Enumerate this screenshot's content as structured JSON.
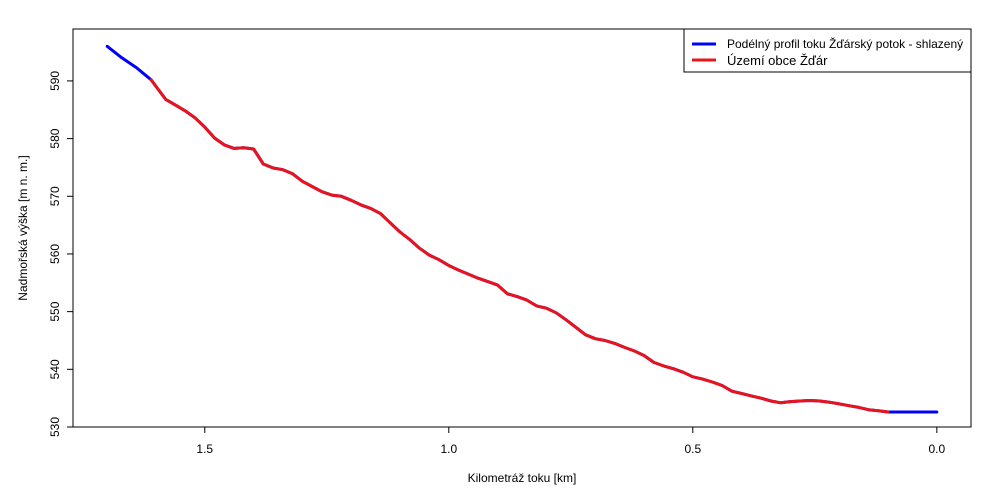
{
  "chart_data": {
    "type": "line",
    "title": "",
    "xlabel": "Kilometráž toku [km]",
    "ylabel": "Nadmořská výška [m n. m.]",
    "x_reversed": true,
    "xlim": [
      1.77,
      -0.07
    ],
    "ylim": [
      530,
      599
    ],
    "x_ticks": [
      1.5,
      1.0,
      0.5,
      0.0
    ],
    "x_tick_labels": [
      "1.5",
      "1.0",
      "0.5",
      "0.0"
    ],
    "y_ticks": [
      530,
      540,
      550,
      560,
      570,
      580,
      590
    ],
    "y_tick_labels": [
      "530",
      "540",
      "550",
      "560",
      "570",
      "580",
      "590"
    ],
    "grid": false,
    "legend_position": "top-right",
    "legend": [
      {
        "label": "Podélný profil toku Žďárský potok - shlazený",
        "color": "#0000ff"
      },
      {
        "label": "Území obce Žďár",
        "color": "#e8141b"
      }
    ],
    "series": [
      {
        "name": "Podélný profil toku Žďárský potok - shlazený",
        "color": "#0000ff",
        "x": [
          1.7,
          1.67,
          1.64,
          1.61,
          1.595,
          1.58,
          1.56,
          1.54,
          1.52,
          1.5,
          1.48,
          1.46,
          1.44,
          1.42,
          1.4,
          1.38,
          1.36,
          1.34,
          1.32,
          1.3,
          1.28,
          1.26,
          1.24,
          1.22,
          1.2,
          1.18,
          1.16,
          1.14,
          1.12,
          1.1,
          1.08,
          1.06,
          1.04,
          1.02,
          1.0,
          0.98,
          0.96,
          0.94,
          0.92,
          0.9,
          0.88,
          0.86,
          0.84,
          0.82,
          0.8,
          0.78,
          0.76,
          0.74,
          0.72,
          0.7,
          0.68,
          0.66,
          0.64,
          0.62,
          0.6,
          0.58,
          0.56,
          0.54,
          0.52,
          0.5,
          0.48,
          0.46,
          0.44,
          0.42,
          0.4,
          0.38,
          0.36,
          0.34,
          0.32,
          0.3,
          0.28,
          0.26,
          0.24,
          0.22,
          0.2,
          0.18,
          0.16,
          0.14,
          0.12,
          0.1,
          0.08,
          0.06,
          0.04,
          0.02,
          0.0
        ],
        "y": [
          596.0,
          594.0,
          592.3,
          590.2,
          588.5,
          586.8,
          585.8,
          584.8,
          583.6,
          582.0,
          580.1,
          578.9,
          578.3,
          578.4,
          578.2,
          575.6,
          574.9,
          574.6,
          573.9,
          572.6,
          571.7,
          570.8,
          570.2,
          570.0,
          569.3,
          568.5,
          567.9,
          567.0,
          565.4,
          563.8,
          562.5,
          561.0,
          559.8,
          559.0,
          558.0,
          557.2,
          556.5,
          555.8,
          555.2,
          554.6,
          553.1,
          552.6,
          552.0,
          551.0,
          550.6,
          549.8,
          548.6,
          547.3,
          546.0,
          545.3,
          545.0,
          544.5,
          543.8,
          543.2,
          542.4,
          541.2,
          540.6,
          540.1,
          539.5,
          538.7,
          538.3,
          537.8,
          537.2,
          536.2,
          535.8,
          535.4,
          535.0,
          534.5,
          534.2,
          534.4,
          534.5,
          534.6,
          534.5,
          534.3,
          534.0,
          533.7,
          533.4,
          533.0,
          532.8,
          532.6,
          532.6,
          532.6,
          532.6,
          532.6,
          532.6
        ]
      },
      {
        "name": "Území obce Žďár",
        "color": "#e8141b",
        "x": [
          1.61,
          1.595,
          1.58,
          1.56,
          1.54,
          1.52,
          1.5,
          1.48,
          1.46,
          1.44,
          1.42,
          1.4,
          1.38,
          1.36,
          1.34,
          1.32,
          1.3,
          1.28,
          1.26,
          1.24,
          1.22,
          1.2,
          1.18,
          1.16,
          1.14,
          1.12,
          1.1,
          1.08,
          1.06,
          1.04,
          1.02,
          1.0,
          0.98,
          0.96,
          0.94,
          0.92,
          0.9,
          0.88,
          0.86,
          0.84,
          0.82,
          0.8,
          0.78,
          0.76,
          0.74,
          0.72,
          0.7,
          0.68,
          0.66,
          0.64,
          0.62,
          0.6,
          0.58,
          0.56,
          0.54,
          0.52,
          0.5,
          0.48,
          0.46,
          0.44,
          0.42,
          0.4,
          0.38,
          0.36,
          0.34,
          0.32,
          0.3,
          0.28,
          0.26,
          0.24,
          0.22,
          0.2,
          0.18,
          0.16,
          0.14,
          0.12,
          0.1
        ],
        "y": [
          590.2,
          588.5,
          586.8,
          585.8,
          584.8,
          583.6,
          582.0,
          580.1,
          578.9,
          578.3,
          578.4,
          578.2,
          575.6,
          574.9,
          574.6,
          573.9,
          572.6,
          571.7,
          570.8,
          570.2,
          570.0,
          569.3,
          568.5,
          567.9,
          567.0,
          565.4,
          563.8,
          562.5,
          561.0,
          559.8,
          559.0,
          558.0,
          557.2,
          556.5,
          555.8,
          555.2,
          554.6,
          553.1,
          552.6,
          552.0,
          551.0,
          550.6,
          549.8,
          548.6,
          547.3,
          546.0,
          545.3,
          545.0,
          544.5,
          543.8,
          543.2,
          542.4,
          541.2,
          540.6,
          540.1,
          539.5,
          538.7,
          538.3,
          537.8,
          537.2,
          536.2,
          535.8,
          535.4,
          535.0,
          534.5,
          534.2,
          534.4,
          534.5,
          534.6,
          534.5,
          534.3,
          534.0,
          533.7,
          533.4,
          533.0,
          532.8,
          532.6
        ]
      }
    ]
  }
}
